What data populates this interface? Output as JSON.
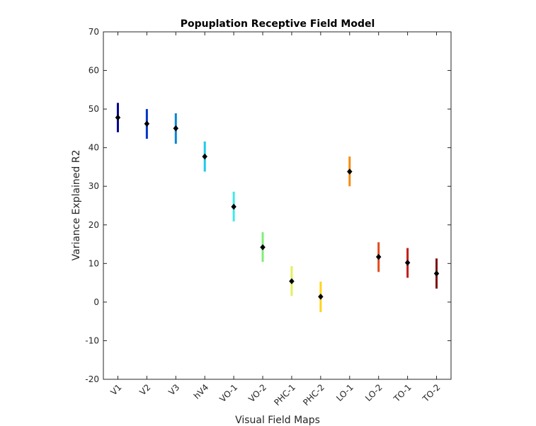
{
  "chart_data": {
    "type": "scatter",
    "title": "Popuplation Receptive Field Model",
    "xlabel": "Visual Field Maps",
    "ylabel": "Variance Explained R2",
    "ylim": [
      -20,
      70
    ],
    "yticks": [
      -20,
      -10,
      0,
      10,
      20,
      30,
      40,
      50,
      60,
      70
    ],
    "grid": false,
    "categories": [
      "V1",
      "V2",
      "V3",
      "hV4",
      "VO-1",
      "VO-2",
      "PHC-1",
      "PHC-2",
      "LO-1",
      "LO-2",
      "TO-1",
      "TO-2"
    ],
    "values": [
      47.8,
      46.2,
      45.0,
      37.7,
      24.7,
      14.2,
      5.4,
      1.4,
      33.8,
      11.7,
      10.2,
      7.4
    ],
    "error_low": [
      44.0,
      42.3,
      41.0,
      33.8,
      20.9,
      10.4,
      1.6,
      -2.6,
      30.0,
      7.8,
      6.3,
      3.5
    ],
    "error_high": [
      51.6,
      50.0,
      48.9,
      41.6,
      28.6,
      18.1,
      9.3,
      5.3,
      37.7,
      15.5,
      14.0,
      11.3
    ],
    "colors": [
      "#00008f",
      "#0034c8",
      "#0a85d0",
      "#1fc9e8",
      "#40e8e8",
      "#7fee78",
      "#e6ee5a",
      "#ffd31a",
      "#f58a12",
      "#e34a1a",
      "#c01c18",
      "#7c0e0e"
    ],
    "marker_color": "#000000"
  }
}
